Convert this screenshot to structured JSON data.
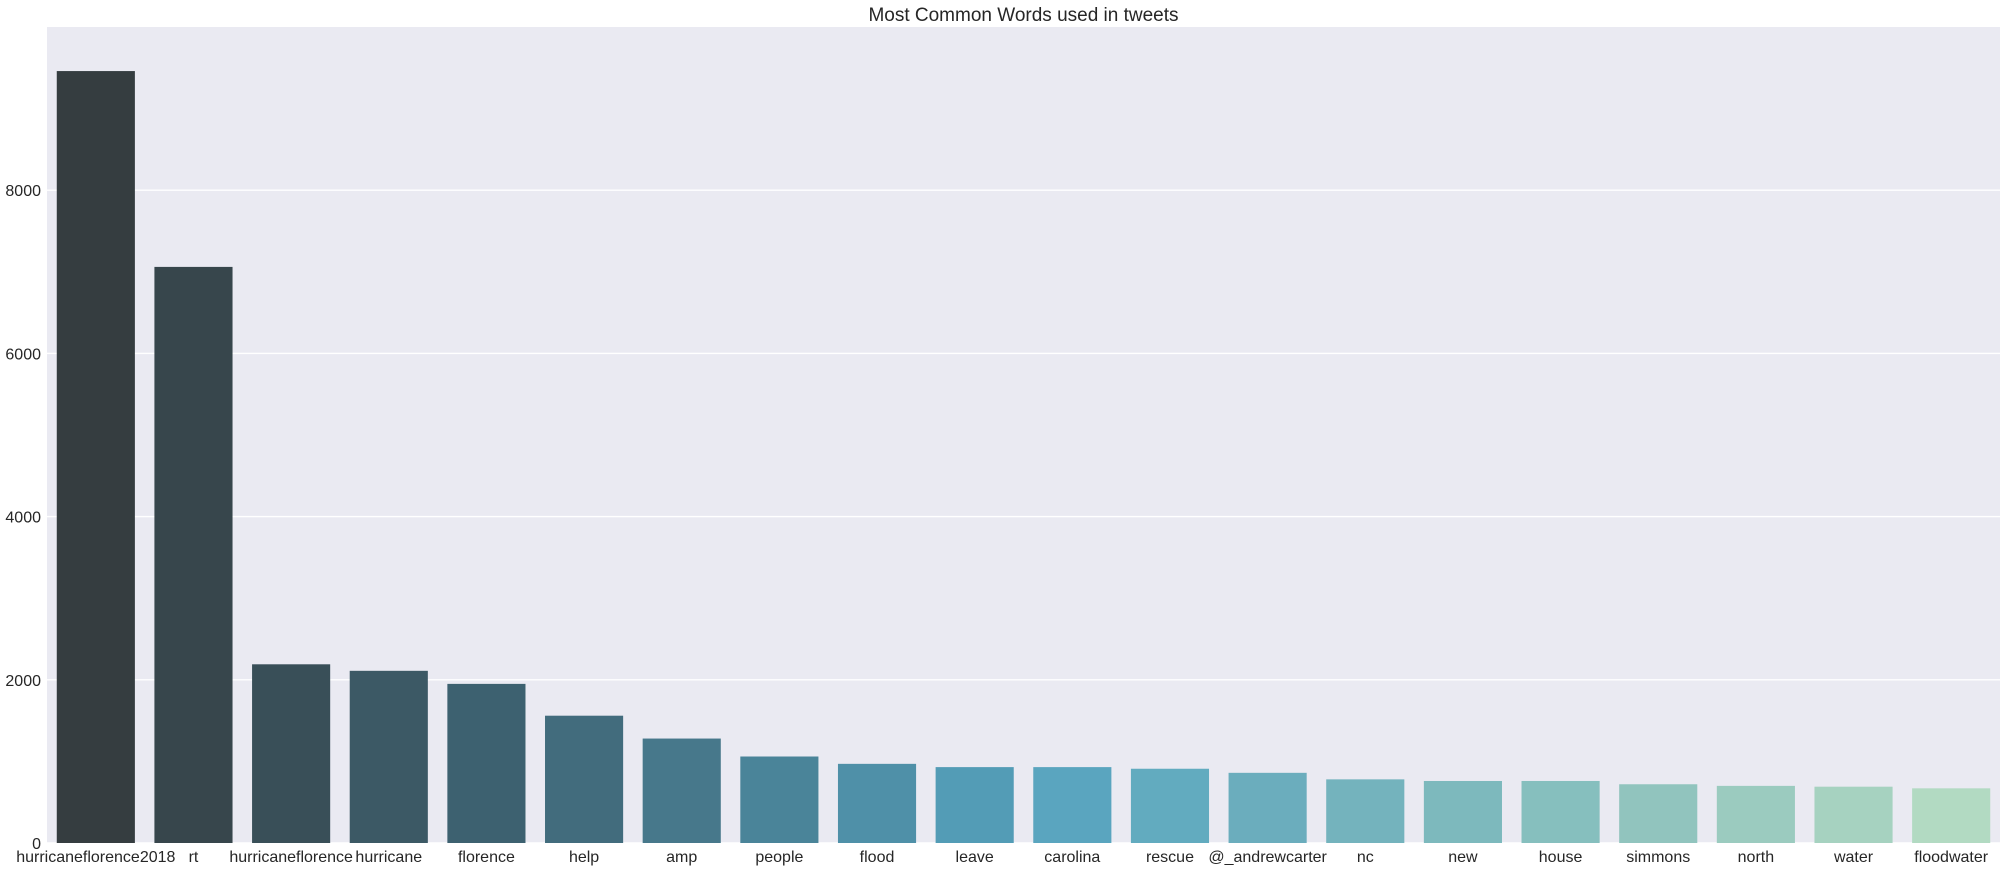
{
  "chart_data": {
    "type": "bar",
    "title": "Most Common Words used in tweets",
    "xlabel": "",
    "ylabel": "",
    "ylim": [
      0,
      10000
    ],
    "yticks": [
      0,
      2000,
      4000,
      6000,
      8000
    ],
    "grid": true,
    "legend": "none",
    "background_color": "#eaeaf2",
    "gridline_color": "#ffffff",
    "palette": "GnBu_d",
    "categories": [
      "hurricaneflorence2018",
      "rt",
      "hurricaneflorence",
      "hurricane",
      "florence",
      "help",
      "amp",
      "people",
      "flood",
      "leave",
      "carolina",
      "rescue",
      "@_andrewcarter",
      "nc",
      "new",
      "house",
      "simmons",
      "north",
      "water",
      "floodwater"
    ],
    "values": [
      9460,
      7060,
      2190,
      2110,
      1950,
      1560,
      1280,
      1060,
      970,
      930,
      930,
      910,
      860,
      780,
      760,
      760,
      720,
      700,
      690,
      670
    ],
    "colors": [
      "#353d40",
      "#37464c",
      "#394f58",
      "#3c5965",
      "#3d6170",
      "#426c7d",
      "#47788b",
      "#4a8499",
      "#4f90a8",
      "#539cb6",
      "#5aa5bf",
      "#62abbf",
      "#6badbd",
      "#74b3bd",
      "#7db9bd",
      "#86bfbe",
      "#91c4be",
      "#9bcbbf",
      "#a6d2c0",
      "#b2dac2"
    ]
  }
}
